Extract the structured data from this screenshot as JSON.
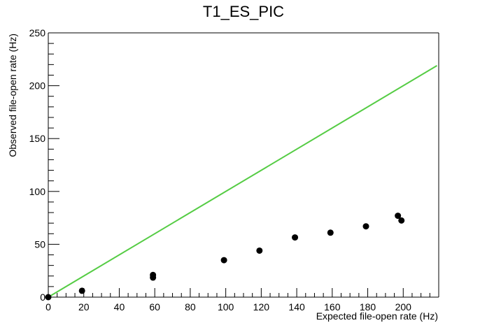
{
  "chart_data": {
    "type": "scatter",
    "title": "T1_ES_PIC",
    "xlabel": "Expected file-open rate (Hz)",
    "ylabel": "Observed file-open rate (Hz)",
    "xlim": [
      0,
      220
    ],
    "ylim": [
      0,
      250
    ],
    "x_ticks": [
      0,
      20,
      40,
      60,
      80,
      100,
      120,
      140,
      160,
      180,
      200
    ],
    "y_ticks": [
      0,
      50,
      100,
      150,
      200,
      250
    ],
    "grid": false,
    "series": [
      {
        "type": "scatter",
        "color": "#000000",
        "points": [
          {
            "x": 0,
            "y": 0
          },
          {
            "x": 19,
            "y": 6
          },
          {
            "x": 59,
            "y": 18.5
          },
          {
            "x": 59,
            "y": 21
          },
          {
            "x": 99,
            "y": 35
          },
          {
            "x": 119,
            "y": 44
          },
          {
            "x": 139,
            "y": 56.5
          },
          {
            "x": 159,
            "y": 61
          },
          {
            "x": 179,
            "y": 67
          },
          {
            "x": 197,
            "y": 77
          },
          {
            "x": 199,
            "y": 72.5
          }
        ]
      },
      {
        "type": "line",
        "color": "#55cc44",
        "x": [
          0,
          219
        ],
        "y": [
          0,
          219
        ]
      }
    ]
  }
}
